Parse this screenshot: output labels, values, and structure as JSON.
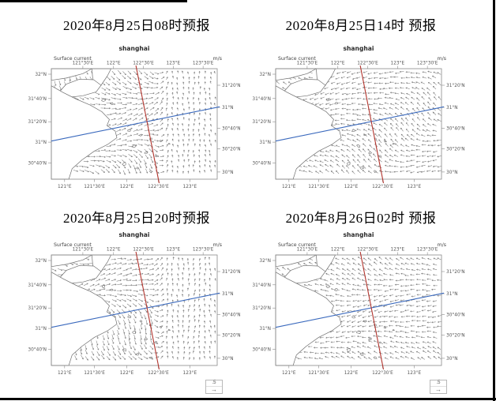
{
  "page": {
    "background": "#ffffff",
    "border_color": "#000000"
  },
  "panels": [
    {
      "title": "2020年8月25日08时预报",
      "has_legend": false,
      "flow": {
        "pattern": "eastward-ebb-with-offshore-columns",
        "base": 20,
        "wamp": 45,
        "wf1": 5.5,
        "wf2": 3.0,
        "phase": 0.8,
        "len": 6,
        "split": 0.62,
        "east_angle": -95,
        "east_amp": 10,
        "east_len": 3.2
      }
    },
    {
      "title": "2020年8月25日14时 预报",
      "has_legend": false,
      "flow": {
        "pattern": "westward-flood",
        "base": -168,
        "wamp": 32,
        "wf1": 4.5,
        "wf2": 5.2,
        "phase": 1.7,
        "len": 5.2
      }
    },
    {
      "title": "2020年8月25日20时预报",
      "has_legend": true,
      "flow": {
        "pattern": "eastward-ebb-with-offshore-columns",
        "base": 30,
        "wamp": 50,
        "wf1": 6.0,
        "wf2": 2.4,
        "phase": 2.6,
        "len": 6,
        "split": 0.6,
        "east_angle": -88,
        "east_amp": 14,
        "east_len": 3.4
      }
    },
    {
      "title": "2020年8月26日02时 预报",
      "has_legend": true,
      "flow": {
        "pattern": "westward-flood",
        "base": -172,
        "wamp": 24,
        "wf1": 6.5,
        "wf2": 1.8,
        "phase": 0.3,
        "len": 5
      }
    }
  ],
  "map": {
    "title": "shanghai",
    "var_label": "Surface current",
    "unit_label": "m/s",
    "top_axis_ticks": [
      "121°30'E",
      "122°E",
      "122°30'E",
      "123°E",
      "123°30'E"
    ],
    "bottom_axis_ticks": [
      "121°E",
      "121°30'E",
      "122°E",
      "122°30'E",
      "123°E"
    ],
    "left_axis_ticks": [
      "32°N",
      "31°40'N",
      "31°20'N",
      "31°N",
      "30°40'N"
    ],
    "right_axis_ticks": [
      "31°20'N",
      "31°N",
      "30°40'N",
      "30°20'N",
      "30°N"
    ],
    "colors": {
      "meridian_line": "#b2352e",
      "parallel_line": "#3a69bd",
      "arrows": "#7b7b7b",
      "coastline": "#6e6e6e",
      "frame": "#8a8a8a",
      "tick_text": "#555555"
    }
  },
  "legend": {
    "value": ".5"
  }
}
